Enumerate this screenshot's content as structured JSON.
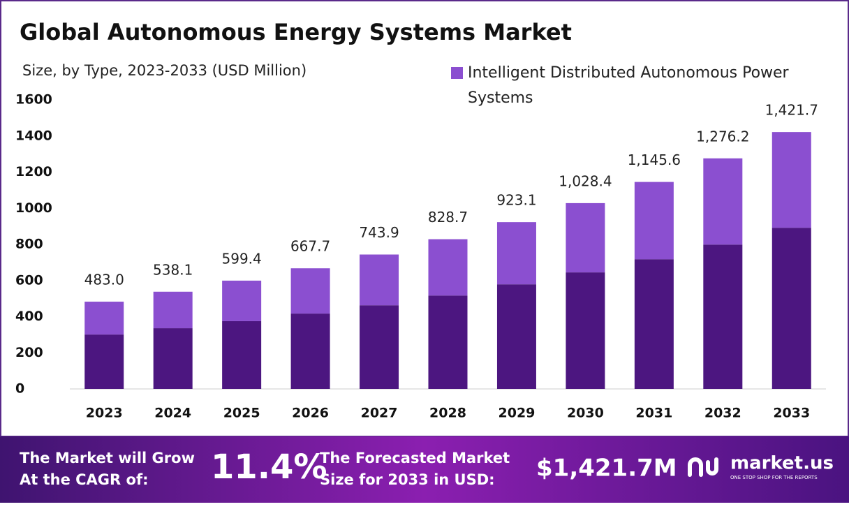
{
  "chart_data": {
    "type": "stacked_bar",
    "title": "Global Autonomous Energy Systems Market",
    "subtitle": "Size, by Type, 2023-2033 (USD Million)",
    "categories": [
      "2023",
      "2024",
      "2025",
      "2026",
      "2027",
      "2028",
      "2029",
      "2030",
      "2031",
      "2032",
      "2033"
    ],
    "series": [
      {
        "color": "#4c1680",
        "values": [
          301,
          336,
          375,
          417,
          463,
          517,
          579,
          645,
          718,
          799,
          892
        ]
      },
      {
        "name": "Intelligent Distributed Autonomous Power Systems",
        "color": "#8b4fd0",
        "values": [
          182,
          202.1,
          224.4,
          250.7,
          280.9,
          311.7,
          344.1,
          383.4,
          427.6,
          477.2,
          529.7
        ]
      }
    ],
    "totals": {
      "values": [
        483.0,
        538.1,
        599.4,
        667.7,
        743.9,
        828.7,
        923.1,
        1028.4,
        1145.6,
        1276.2,
        1421.7
      ],
      "value_labels": [
        "483.0",
        "538.1",
        "599.4",
        "667.7",
        "743.9",
        "828.7",
        "923.1",
        "1,028.4",
        "1,145.6",
        "1,276.2",
        "1,421.7"
      ]
    },
    "ylim": [
      0,
      1600
    ],
    "yticks": [
      0,
      200,
      400,
      600,
      800,
      1000,
      1200,
      1400,
      1600
    ],
    "grid": false,
    "legend": "top-right"
  },
  "footer": {
    "cagr_text": [
      "The Market will Grow",
      "At the CAGR of:"
    ],
    "cagr": "11.4%",
    "forecast_text": [
      "The Forecasted Market",
      "Size for 2033 in USD:"
    ],
    "forecast": "$1,421.7M",
    "brand": "market.us",
    "tagline": "ONE STOP SHOP FOR THE REPORTS"
  }
}
